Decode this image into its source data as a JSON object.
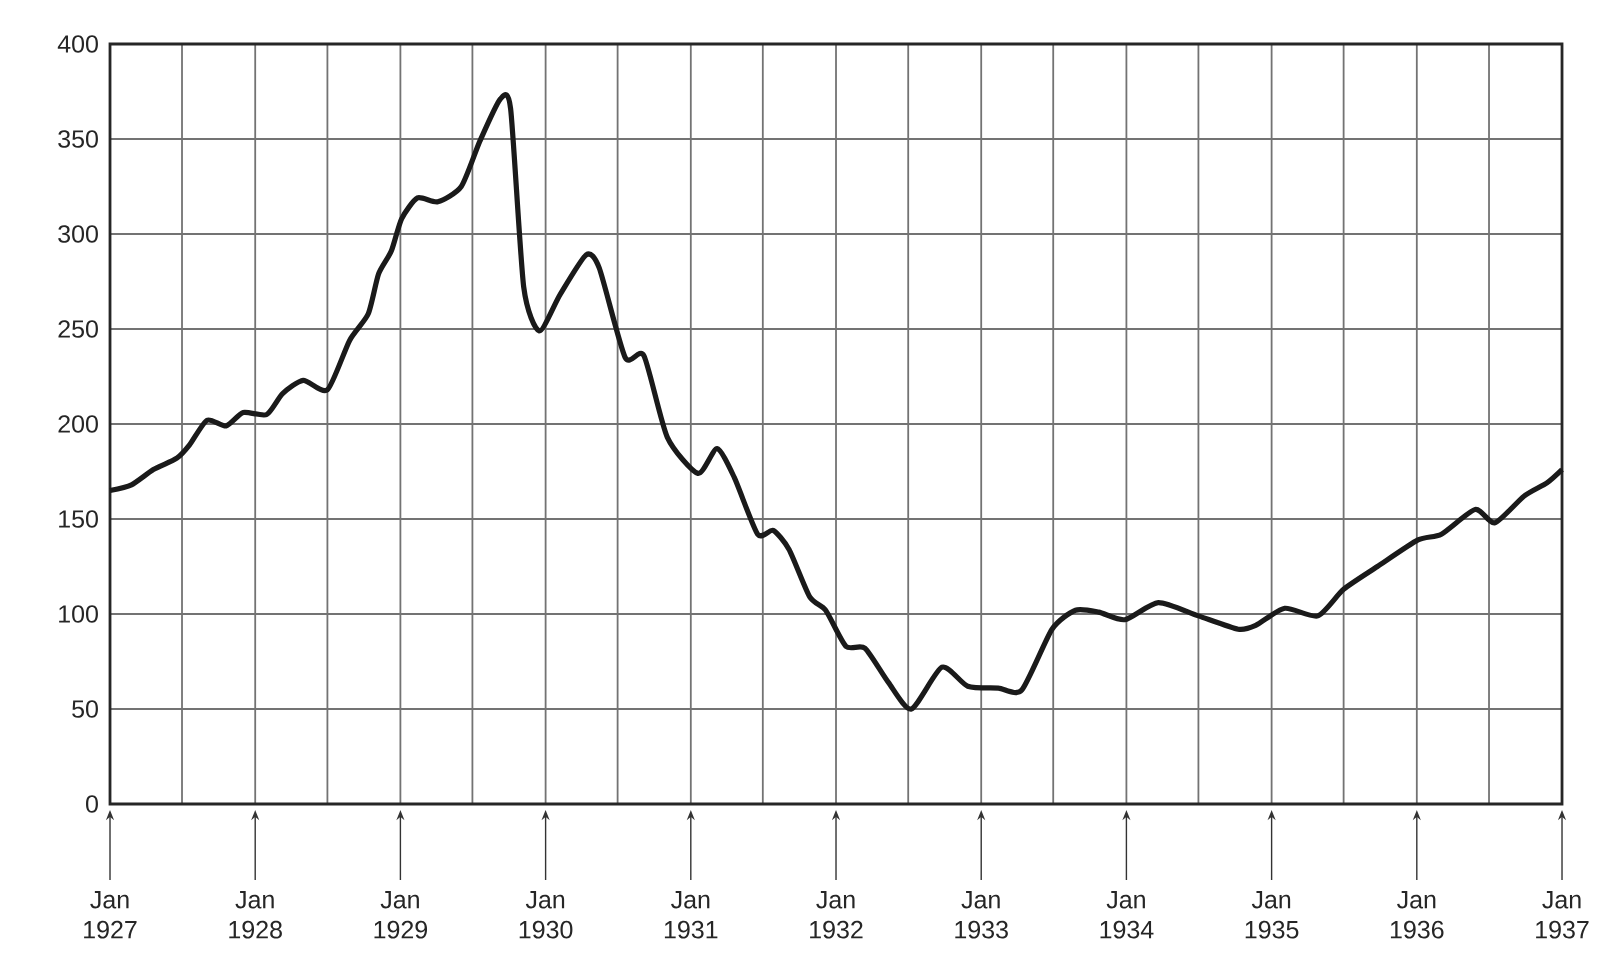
{
  "chart_data": {
    "type": "line",
    "x": [
      "1927-01-01",
      "1927-02-24",
      "1927-04-20",
      "1927-06-18",
      "1927-07-20",
      "1927-09-02",
      "1927-10-20",
      "1927-12-02",
      "1928-01-30",
      "1928-03-10",
      "1928-05-01",
      "1928-07-01",
      "1928-08-26",
      "1928-10-12",
      "1928-11-07",
      "1928-12-09",
      "1929-01-04",
      "1929-02-13",
      "1929-04-05",
      "1929-06-03",
      "1929-07-20",
      "1929-09-09",
      "1929-10-05",
      "1929-11-07",
      "1929-12-16",
      "1930-02-06",
      "1930-04-13",
      "1930-05-16",
      "1930-07-20",
      "1930-09-05",
      "1930-11-03",
      "1931-01-19",
      "1931-03-08",
      "1931-04-20",
      "1931-06-18",
      "1931-07-27",
      "1931-09-05",
      "1931-10-27",
      "1931-12-06",
      "1932-01-26",
      "1932-03-14",
      "1932-05-12",
      "1932-07-09",
      "1932-09-24",
      "1932-11-28",
      "1933-02-13",
      "1933-04-13",
      "1933-06-28",
      "1933-08-26",
      "1933-10-23",
      "1933-12-28",
      "1934-03-22",
      "1934-07-01",
      "1934-10-09",
      "1934-11-22",
      "1935-02-03",
      "1935-04-27",
      "1935-07-01",
      "1935-09-24",
      "1936-01-04",
      "1936-03-03",
      "1936-05-27",
      "1936-07-16",
      "1936-09-27",
      "1936-11-24",
      "1937-01-01"
    ],
    "series": [
      {
        "color": "#1a1a1a",
        "values": [
          165,
          168,
          176,
          182,
          189,
          202,
          199,
          206,
          205,
          216,
          223,
          218,
          244,
          258,
          279,
          291,
          308,
          319,
          317,
          325,
          349,
          371,
          366,
          272,
          249,
          268,
          289,
          282,
          235,
          236,
          193,
          174,
          187,
          172,
          142,
          144,
          134,
          109,
          102,
          83,
          82,
          64,
          50,
          72,
          62,
          61,
          60,
          92,
          102,
          101,
          97,
          106,
          99,
          92,
          94,
          103,
          99,
          113,
          125,
          139,
          142,
          155,
          148,
          162,
          169,
          176
        ]
      }
    ],
    "xlim": [
      "1927-01-01",
      "1937-01-01"
    ],
    "ylim": [
      0,
      400
    ],
    "xticks": [
      {
        "value": "1927-01-01",
        "label": "Jan 1927"
      },
      {
        "value": "1927-07-01",
        "label": null
      },
      {
        "value": "1928-01-01",
        "label": "Jan 1928"
      },
      {
        "value": "1928-07-01",
        "label": null
      },
      {
        "value": "1929-01-01",
        "label": "Jan 1929"
      },
      {
        "value": "1929-07-01",
        "label": null
      },
      {
        "value": "1930-01-01",
        "label": "Jan 1930"
      },
      {
        "value": "1930-07-01",
        "label": null
      },
      {
        "value": "1931-01-01",
        "label": "Jan 1931"
      },
      {
        "value": "1931-07-01",
        "label": null
      },
      {
        "value": "1932-01-01",
        "label": "Jan 1932"
      },
      {
        "value": "1932-07-01",
        "label": null
      },
      {
        "value": "1933-01-01",
        "label": "Jan 1933"
      },
      {
        "value": "1933-07-01",
        "label": null
      },
      {
        "value": "1934-01-01",
        "label": "Jan 1934"
      },
      {
        "value": "1934-07-01",
        "label": null
      },
      {
        "value": "1935-01-01",
        "label": "Jan 1935"
      },
      {
        "value": "1935-07-01",
        "label": null
      },
      {
        "value": "1936-01-01",
        "label": "Jan 1936"
      },
      {
        "value": "1936-07-01",
        "label": null
      },
      {
        "value": "1937-01-01",
        "label": "Jan 1937"
      }
    ],
    "yticks": [
      0,
      50,
      100,
      150,
      200,
      250,
      300,
      350,
      400
    ],
    "grid": true,
    "marker": "none",
    "line_style": "solid"
  }
}
